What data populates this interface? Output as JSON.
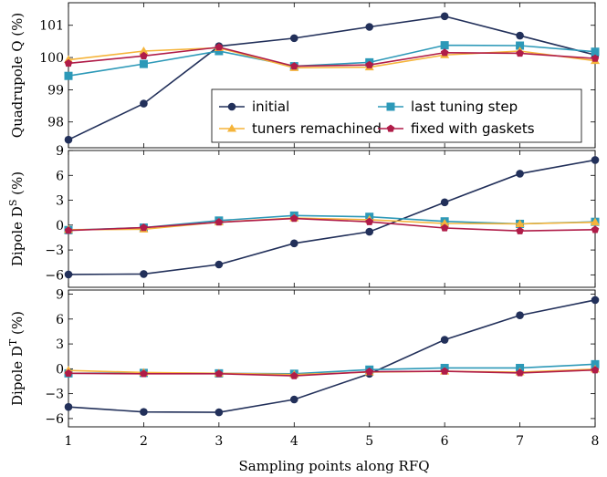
{
  "chart_data": [
    {
      "type": "line",
      "ylabel": "Quadrupole Q (%)",
      "ylim": [
        97.2,
        101.7
      ],
      "yticks": [
        98,
        99,
        100,
        101
      ],
      "x": [
        1,
        2,
        3,
        4,
        5,
        6,
        7,
        8
      ],
      "series": [
        {
          "name": "initial",
          "values": [
            97.45,
            98.57,
            100.35,
            100.6,
            100.95,
            101.28,
            100.68,
            100.08
          ]
        },
        {
          "name": "last tuning step",
          "values": [
            99.43,
            99.8,
            100.2,
            99.73,
            99.85,
            100.38,
            100.37,
            100.18
          ]
        },
        {
          "name": "tuners remachined",
          "values": [
            99.93,
            100.2,
            100.3,
            99.68,
            99.7,
            100.08,
            100.2,
            99.9
          ]
        },
        {
          "name": "fixed with gaskets",
          "values": [
            99.82,
            100.05,
            100.32,
            99.73,
            99.77,
            100.15,
            100.13,
            99.97
          ]
        }
      ],
      "legend": "bottom-right"
    },
    {
      "type": "line",
      "ylabel_main": "Dipole D",
      "ylabel_sup": "S",
      "ylabel_unit": " (%)",
      "ylim": [
        -7.5,
        9.0
      ],
      "yticks": [
        -6,
        -3,
        0,
        3,
        6,
        9
      ],
      "x": [
        1,
        2,
        3,
        4,
        5,
        6,
        7,
        8
      ],
      "series": [
        {
          "name": "initial",
          "values": [
            -5.95,
            -5.9,
            -4.75,
            -2.2,
            -0.8,
            2.75,
            6.2,
            7.85
          ]
        },
        {
          "name": "last tuning step",
          "values": [
            -0.6,
            -0.3,
            0.55,
            1.15,
            1.0,
            0.45,
            0.15,
            0.4
          ]
        },
        {
          "name": "tuners remachined",
          "values": [
            -0.55,
            -0.5,
            0.35,
            0.85,
            0.65,
            0.2,
            0.15,
            0.35
          ]
        },
        {
          "name": "fixed with gaskets",
          "values": [
            -0.65,
            -0.3,
            0.35,
            0.8,
            0.4,
            -0.35,
            -0.7,
            -0.55
          ]
        }
      ]
    },
    {
      "type": "line",
      "ylabel_main": "Dipole D",
      "ylabel_sup": "T",
      "ylabel_unit": " (%)",
      "ylim": [
        -7.0,
        9.5
      ],
      "yticks": [
        -6,
        -3,
        0,
        3,
        6,
        9
      ],
      "x": [
        1,
        2,
        3,
        4,
        5,
        6,
        7,
        8
      ],
      "xlabel": "Sampling points along RFQ",
      "series": [
        {
          "name": "initial",
          "values": [
            -4.6,
            -5.2,
            -5.25,
            -3.7,
            -0.6,
            3.5,
            6.45,
            8.3
          ]
        },
        {
          "name": "last tuning step",
          "values": [
            -0.55,
            -0.5,
            -0.55,
            -0.6,
            -0.1,
            0.1,
            0.1,
            0.55
          ]
        },
        {
          "name": "tuners remachined",
          "values": [
            -0.2,
            -0.45,
            -0.55,
            -0.7,
            -0.4,
            -0.3,
            -0.4,
            -0.05
          ]
        },
        {
          "name": "fixed with gaskets",
          "values": [
            -0.55,
            -0.6,
            -0.6,
            -0.85,
            -0.35,
            -0.3,
            -0.5,
            -0.15
          ]
        }
      ]
    }
  ],
  "series_styles": [
    {
      "color": "#22305a",
      "marker": "circle"
    },
    {
      "color": "#2d99b8",
      "marker": "square"
    },
    {
      "color": "#f5b43a",
      "marker": "triangle"
    },
    {
      "color": "#b01c48",
      "marker": "pentagon"
    }
  ]
}
